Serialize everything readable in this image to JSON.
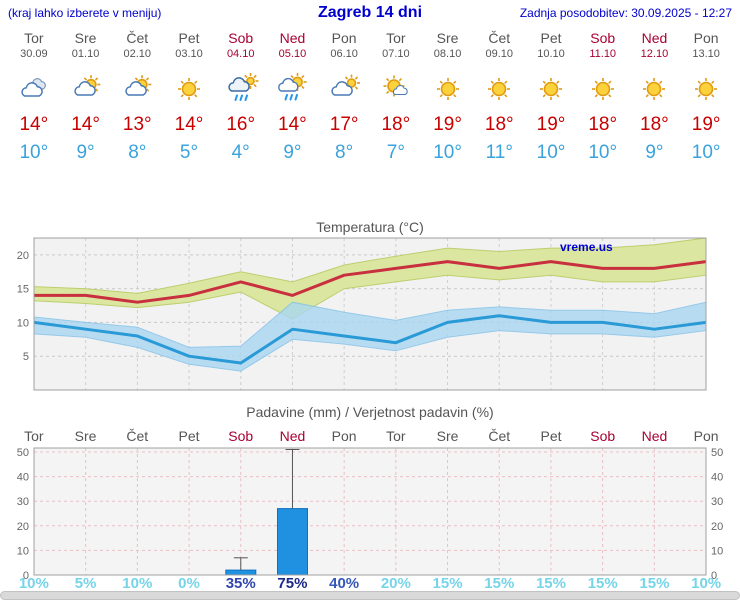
{
  "header": {
    "left_note": "(kraj lahko izberete v meniju)",
    "title": "Zagreb 14 dni",
    "updated": "Zadnja posodobitev: 30.09.2025 - 12:27"
  },
  "days": [
    {
      "name": "Tor",
      "date": "30.09",
      "weekend": false,
      "icon": "cloudy",
      "high": "14°",
      "low": "10°"
    },
    {
      "name": "Sre",
      "date": "01.10",
      "weekend": false,
      "icon": "partly-cloudy",
      "high": "14°",
      "low": "9°"
    },
    {
      "name": "Čet",
      "date": "02.10",
      "weekend": false,
      "icon": "partly-cloudy",
      "high": "13°",
      "low": "8°"
    },
    {
      "name": "Pet",
      "date": "03.10",
      "weekend": false,
      "icon": "sunny",
      "high": "14°",
      "low": "5°"
    },
    {
      "name": "Sob",
      "date": "04.10",
      "weekend": true,
      "icon": "rain",
      "high": "16°",
      "low": "4°"
    },
    {
      "name": "Ned",
      "date": "05.10",
      "weekend": true,
      "icon": "rain-sun",
      "high": "14°",
      "low": "9°"
    },
    {
      "name": "Pon",
      "date": "06.10",
      "weekend": false,
      "icon": "cloud-sun",
      "high": "17°",
      "low": "8°"
    },
    {
      "name": "Tor",
      "date": "07.10",
      "weekend": false,
      "icon": "mostly-sunny",
      "high": "18°",
      "low": "7°"
    },
    {
      "name": "Sre",
      "date": "08.10",
      "weekend": false,
      "icon": "sunny",
      "high": "19°",
      "low": "10°"
    },
    {
      "name": "Čet",
      "date": "09.10",
      "weekend": false,
      "icon": "sunny",
      "high": "18°",
      "low": "11°"
    },
    {
      "name": "Pet",
      "date": "10.10",
      "weekend": false,
      "icon": "sunny",
      "high": "19°",
      "low": "10°"
    },
    {
      "name": "Sob",
      "date": "11.10",
      "weekend": true,
      "icon": "sunny",
      "high": "18°",
      "low": "10°"
    },
    {
      "name": "Ned",
      "date": "12.10",
      "weekend": true,
      "icon": "sunny",
      "high": "18°",
      "low": "9°"
    },
    {
      "name": "Pon",
      "date": "13.10",
      "weekend": false,
      "icon": "sunny",
      "high": "19°",
      "low": "10°"
    }
  ],
  "chart_data": [
    {
      "type": "line",
      "title": "Temperatura (°C)",
      "categories": [
        "Tor 30.09",
        "Sre 01.10",
        "Čet 02.10",
        "Pet 03.10",
        "Sob 04.10",
        "Ned 05.10",
        "Pon 06.10",
        "Tor 07.10",
        "Sre 08.10",
        "Čet 09.10",
        "Pet 10.10",
        "Sob 11.10",
        "Ned 12.10",
        "Pon 13.10"
      ],
      "series": [
        {
          "name": "max_temp",
          "color": "#c9303f",
          "values": [
            14,
            14,
            13,
            14,
            16,
            14,
            17,
            18,
            19,
            18,
            19,
            18,
            18,
            19
          ]
        },
        {
          "name": "min_temp",
          "color": "#2a9ad6",
          "values": [
            10,
            9,
            8,
            5,
            4,
            9,
            8,
            7,
            10,
            11,
            10,
            10,
            9,
            10
          ]
        },
        {
          "name": "max_band_upper",
          "values": [
            15.3,
            15,
            14.3,
            15.8,
            17.5,
            16,
            18.5,
            19.8,
            21,
            20.5,
            21,
            21,
            21.5,
            22.5
          ]
        },
        {
          "name": "max_band_lower",
          "values": [
            13.2,
            12.8,
            12.2,
            13,
            14.5,
            10.5,
            15,
            16,
            17,
            16.3,
            17,
            16,
            16,
            17
          ]
        },
        {
          "name": "min_band_upper",
          "values": [
            10.8,
            10,
            9.3,
            6.3,
            6.5,
            13,
            11.5,
            10.3,
            11.8,
            12.3,
            11.8,
            11.8,
            11.3,
            13
          ]
        },
        {
          "name": "min_band_lower",
          "values": [
            8.3,
            7.8,
            6.3,
            3.8,
            2.8,
            7.5,
            6.8,
            5.8,
            7.8,
            8.8,
            8.3,
            8.3,
            7.8,
            8.8
          ]
        }
      ],
      "band_colors": {
        "max_band": "#dbe7a0",
        "max_band_edge": "#bccf6e",
        "min_band": "#a9d7f2",
        "min_band_edge": "#7fbfe8"
      },
      "ylim": [
        0,
        22.5
      ],
      "yticks": [
        5,
        10,
        15,
        20
      ],
      "grid": true,
      "legend": "none",
      "watermark": "vreme.us",
      "watermark_color": "#0000cc"
    },
    {
      "type": "bar",
      "title": "Padavine (mm) / Verjetnost padavin (%)",
      "categories": [
        "Tor",
        "Sre",
        "Čet",
        "Pet",
        "Sob",
        "Ned",
        "Pon",
        "Tor",
        "Sre",
        "Čet",
        "Pet",
        "Sob",
        "Ned",
        "Pon"
      ],
      "weekend_flags": [
        false,
        false,
        false,
        false,
        true,
        true,
        false,
        false,
        false,
        false,
        false,
        true,
        true,
        false
      ],
      "values_mm": [
        0,
        0,
        0,
        0,
        2,
        27,
        0,
        0,
        0,
        0,
        0,
        0,
        0,
        0
      ],
      "whisker_max_mm": [
        0,
        0,
        0,
        0,
        7,
        51,
        0,
        0,
        0,
        0,
        0,
        0,
        0,
        0
      ],
      "probabilities": [
        "10%",
        "5%",
        "10%",
        "0%",
        "35%",
        "75%",
        "40%",
        "20%",
        "15%",
        "15%",
        "15%",
        "15%",
        "15%",
        "10%"
      ],
      "prob_colors": [
        "#76d4e8",
        "#76d4e8",
        "#76d4e8",
        "#76d4e8",
        "#2f46ad",
        "#1b2a8a",
        "#3558b8",
        "#76d4e8",
        "#76d4e8",
        "#76d4e8",
        "#76d4e8",
        "#76d4e8",
        "#76d4e8",
        "#76d4e8"
      ],
      "bar_color": "#2090e0",
      "bar_edge_color": "#1070c0",
      "ylim": [
        0,
        51.6
      ],
      "yticks": [
        0,
        10,
        20,
        30,
        40,
        50
      ],
      "grid": true,
      "legend": "none"
    }
  ]
}
